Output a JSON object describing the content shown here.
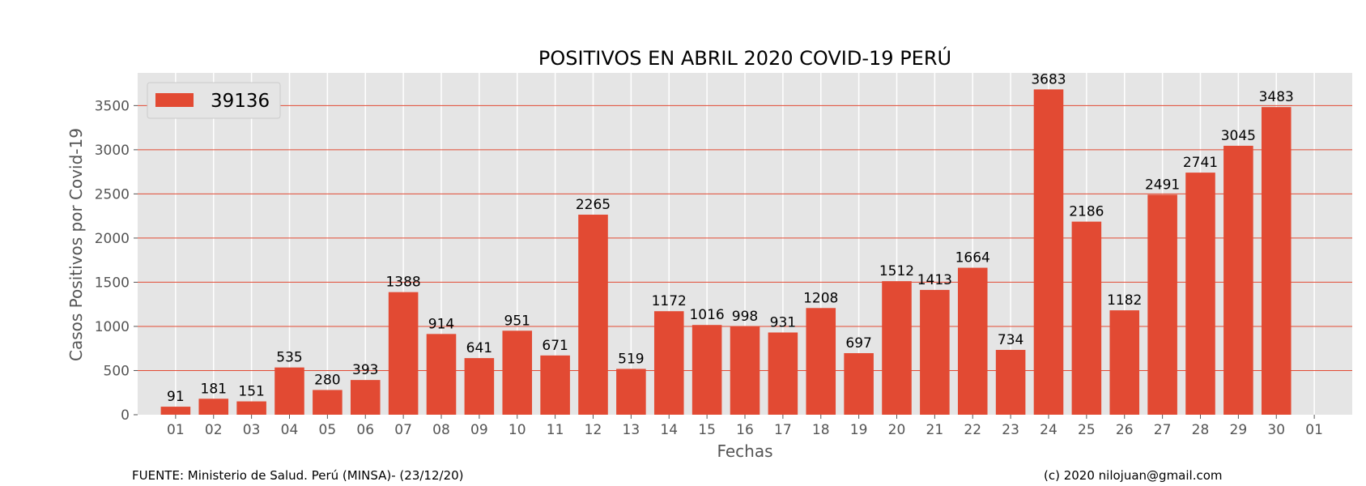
{
  "chart_data": {
    "type": "bar",
    "title": "POSITIVOS EN ABRIL 2020 COVID-19 PERÚ",
    "xlabel": "Fechas",
    "ylabel": "Casos Positivos por Covid-19",
    "ylim": [
      0,
      3870
    ],
    "yticks": [
      0,
      500,
      1000,
      1500,
      2000,
      2500,
      3000,
      3500
    ],
    "x_tick_labels": [
      "01",
      "02",
      "03",
      "04",
      "05",
      "06",
      "07",
      "08",
      "09",
      "10",
      "11",
      "12",
      "13",
      "14",
      "15",
      "16",
      "17",
      "18",
      "19",
      "20",
      "21",
      "22",
      "23",
      "24",
      "25",
      "26",
      "27",
      "28",
      "29",
      "30",
      "01"
    ],
    "categories": [
      "01",
      "02",
      "03",
      "04",
      "05",
      "06",
      "07",
      "08",
      "09",
      "10",
      "11",
      "12",
      "13",
      "14",
      "15",
      "16",
      "17",
      "18",
      "19",
      "20",
      "21",
      "22",
      "23",
      "24",
      "25",
      "26",
      "27",
      "28",
      "29",
      "30"
    ],
    "series": [
      {
        "name": "39136",
        "values": [
          91,
          181,
          151,
          535,
          280,
          393,
          1388,
          914,
          641,
          951,
          671,
          2265,
          519,
          1172,
          1016,
          998,
          931,
          1208,
          697,
          1512,
          1413,
          1664,
          734,
          3683,
          2186,
          1182,
          2491,
          2741,
          3045,
          3483
        ]
      }
    ],
    "grid": true,
    "legend_position": "top-left",
    "colors": {
      "bar": "#E24A33",
      "plot_bg": "#E5E5E5",
      "hgrid": "#E24A33",
      "vgrid": "#FFFFFF",
      "axis_text": "#555555"
    }
  },
  "footer": {
    "source": "FUENTE: Ministerio de Salud. Perú (MINSA)- (23/12/20)",
    "credit": "(c) 2020 nilojuan@gmail.com"
  }
}
